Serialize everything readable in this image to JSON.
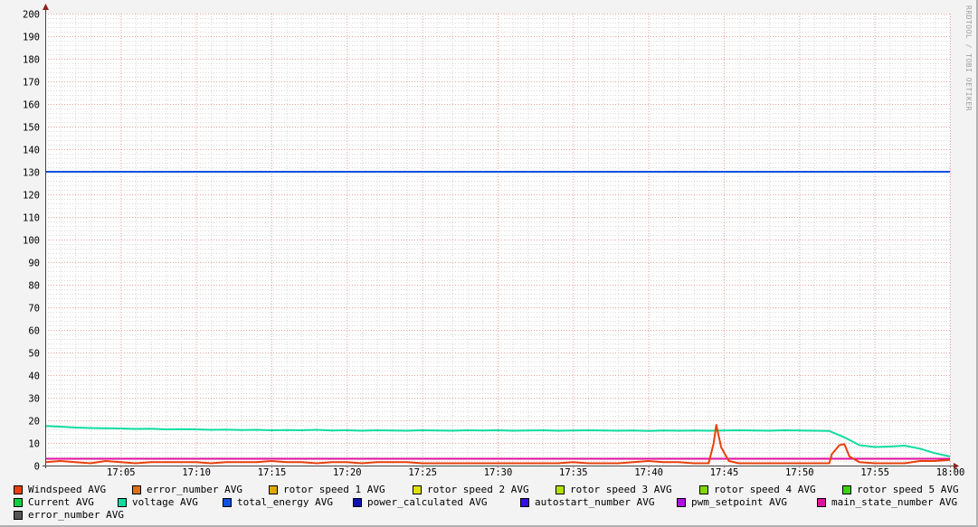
{
  "watermark": "RRDTOOL / TOBI OETIKER",
  "chart_data": {
    "type": "line",
    "title": "",
    "xlabel": "",
    "ylabel": "",
    "xlim": [
      "17:00",
      "18:00"
    ],
    "ylim": [
      0,
      200
    ],
    "grid": true,
    "legend_position": "bottom",
    "x_ticks": [
      "17:05",
      "17:10",
      "17:15",
      "17:20",
      "17:25",
      "17:30",
      "17:35",
      "17:40",
      "17:45",
      "17:50",
      "17:55",
      "18:00"
    ],
    "y_ticks": [
      0,
      10,
      20,
      30,
      40,
      50,
      60,
      70,
      80,
      90,
      100,
      110,
      120,
      130,
      140,
      150,
      160,
      170,
      180,
      190,
      200
    ],
    "legend": [
      {
        "name": "Windspeed AVG",
        "color": "#e8400c"
      },
      {
        "name": "error_number AVG",
        "color": "#e07010"
      },
      {
        "name": "rotor speed 1 AVG",
        "color": "#e0a800"
      },
      {
        "name": "rotor speed 2 AVG",
        "color": "#e0e000"
      },
      {
        "name": "rotor speed 3 AVG",
        "color": "#b4e000"
      },
      {
        "name": "rotor speed 4 AVG",
        "color": "#80d800"
      },
      {
        "name": "rotor speed 5 AVG",
        "color": "#40d010"
      },
      {
        "name": "Current AVG",
        "color": "#10d040"
      },
      {
        "name": "voltage AVG",
        "color": "#10dca0"
      },
      {
        "name": "total_energy AVG",
        "color": "#1050e0"
      },
      {
        "name": "power_calculated AVG",
        "color": "#0c14b0"
      },
      {
        "name": "autostart_number AVG",
        "color": "#3410e0"
      },
      {
        "name": "pwm_setpoint AVG",
        "color": "#b010e0"
      },
      {
        "name": "main_state_number AVG",
        "color": "#e010a0"
      },
      {
        "name": "error_number AVG",
        "color": "#555555"
      }
    ],
    "series": [
      {
        "name": "total_energy AVG",
        "color": "#1050e0",
        "points": [
          [
            "17:00",
            130
          ],
          [
            "18:00",
            130
          ]
        ]
      },
      {
        "name": "main_state_number AVG",
        "color": "#e010a0",
        "points": [
          [
            "17:00",
            3
          ],
          [
            "18:00",
            3
          ]
        ]
      },
      {
        "name": "voltage AVG",
        "color": "#10dca0",
        "points": [
          [
            "17:00",
            17.5
          ],
          [
            "17:01",
            17.2
          ],
          [
            "17:02",
            16.8
          ],
          [
            "17:03",
            16.6
          ],
          [
            "17:04",
            16.5
          ],
          [
            "17:05",
            16.4
          ],
          [
            "17:06",
            16.2
          ],
          [
            "17:07",
            16.3
          ],
          [
            "17:08",
            16.0
          ],
          [
            "17:09",
            16.1
          ],
          [
            "17:10",
            16.0
          ],
          [
            "17:11",
            15.8
          ],
          [
            "17:12",
            15.9
          ],
          [
            "17:13",
            15.7
          ],
          [
            "17:14",
            15.8
          ],
          [
            "17:15",
            15.6
          ],
          [
            "17:16",
            15.7
          ],
          [
            "17:17",
            15.6
          ],
          [
            "17:18",
            15.8
          ],
          [
            "17:19",
            15.5
          ],
          [
            "17:20",
            15.6
          ],
          [
            "17:21",
            15.4
          ],
          [
            "17:22",
            15.6
          ],
          [
            "17:23",
            15.5
          ],
          [
            "17:24",
            15.4
          ],
          [
            "17:25",
            15.6
          ],
          [
            "17:26",
            15.5
          ],
          [
            "17:27",
            15.4
          ],
          [
            "17:28",
            15.6
          ],
          [
            "17:29",
            15.5
          ],
          [
            "17:30",
            15.6
          ],
          [
            "17:31",
            15.4
          ],
          [
            "17:32",
            15.5
          ],
          [
            "17:33",
            15.6
          ],
          [
            "17:34",
            15.4
          ],
          [
            "17:35",
            15.5
          ],
          [
            "17:36",
            15.6
          ],
          [
            "17:37",
            15.5
          ],
          [
            "17:38",
            15.4
          ],
          [
            "17:39",
            15.5
          ],
          [
            "17:40",
            15.3
          ],
          [
            "17:41",
            15.5
          ],
          [
            "17:42",
            15.4
          ],
          [
            "17:43",
            15.5
          ],
          [
            "17:44",
            15.4
          ],
          [
            "17:45",
            15.5
          ],
          [
            "17:46",
            15.6
          ],
          [
            "17:47",
            15.5
          ],
          [
            "17:48",
            15.4
          ],
          [
            "17:49",
            15.6
          ],
          [
            "17:50",
            15.5
          ],
          [
            "17:51",
            15.4
          ],
          [
            "17:52",
            15.3
          ],
          [
            "17:53",
            12.5
          ],
          [
            "17:54",
            9.0
          ],
          [
            "17:55",
            8.2
          ],
          [
            "17:56",
            8.4
          ],
          [
            "17:57",
            8.8
          ],
          [
            "17:58",
            7.5
          ],
          [
            "17:59",
            5.5
          ],
          [
            "18:00",
            4.0
          ]
        ]
      },
      {
        "name": "Windspeed AVG",
        "color": "#e8400c",
        "points": [
          [
            "17:00",
            1.5
          ],
          [
            "17:01",
            2
          ],
          [
            "17:02",
            1.5
          ],
          [
            "17:03",
            1
          ],
          [
            "17:04",
            2
          ],
          [
            "17:05",
            1.5
          ],
          [
            "17:06",
            1
          ],
          [
            "17:07",
            1.5
          ],
          [
            "17:08",
            1.5
          ],
          [
            "17:09",
            1.5
          ],
          [
            "17:10",
            1.5
          ],
          [
            "17:11",
            1
          ],
          [
            "17:12",
            1.5
          ],
          [
            "17:13",
            1.5
          ],
          [
            "17:14",
            1.5
          ],
          [
            "17:15",
            2
          ],
          [
            "17:16",
            1.5
          ],
          [
            "17:17",
            1.5
          ],
          [
            "17:18",
            1
          ],
          [
            "17:19",
            1.5
          ],
          [
            "17:20",
            1.5
          ],
          [
            "17:21",
            1
          ],
          [
            "17:22",
            1.5
          ],
          [
            "17:23",
            1.5
          ],
          [
            "17:24",
            1.5
          ],
          [
            "17:25",
            1
          ],
          [
            "17:26",
            1
          ],
          [
            "17:27",
            1
          ],
          [
            "17:28",
            1
          ],
          [
            "17:29",
            1
          ],
          [
            "17:30",
            1
          ],
          [
            "17:31",
            1
          ],
          [
            "17:32",
            1
          ],
          [
            "17:33",
            1
          ],
          [
            "17:34",
            1
          ],
          [
            "17:35",
            1.5
          ],
          [
            "17:36",
            1
          ],
          [
            "17:37",
            1
          ],
          [
            "17:38",
            1
          ],
          [
            "17:39",
            1.5
          ],
          [
            "17:40",
            2
          ],
          [
            "17:41",
            1.5
          ],
          [
            "17:42",
            1.5
          ],
          [
            "17:43",
            1
          ],
          [
            "17:44",
            1
          ],
          [
            "17:44:20",
            10
          ],
          [
            "17:44:30",
            18
          ],
          [
            "17:44:50",
            8
          ],
          [
            "17:45:20",
            2
          ],
          [
            "17:46",
            1
          ],
          [
            "17:47",
            1
          ],
          [
            "17:48",
            1
          ],
          [
            "17:49",
            1
          ],
          [
            "17:50",
            1
          ],
          [
            "17:51",
            1
          ],
          [
            "17:52",
            1
          ],
          [
            "17:52:10",
            5
          ],
          [
            "17:52:40",
            9
          ],
          [
            "17:53",
            9.5
          ],
          [
            "17:53:20",
            4
          ],
          [
            "17:54",
            1.5
          ],
          [
            "17:55",
            1
          ],
          [
            "17:56",
            1
          ],
          [
            "17:57",
            1
          ],
          [
            "17:58",
            2
          ],
          [
            "17:59",
            2
          ],
          [
            "18:00",
            2.5
          ]
        ]
      }
    ]
  }
}
